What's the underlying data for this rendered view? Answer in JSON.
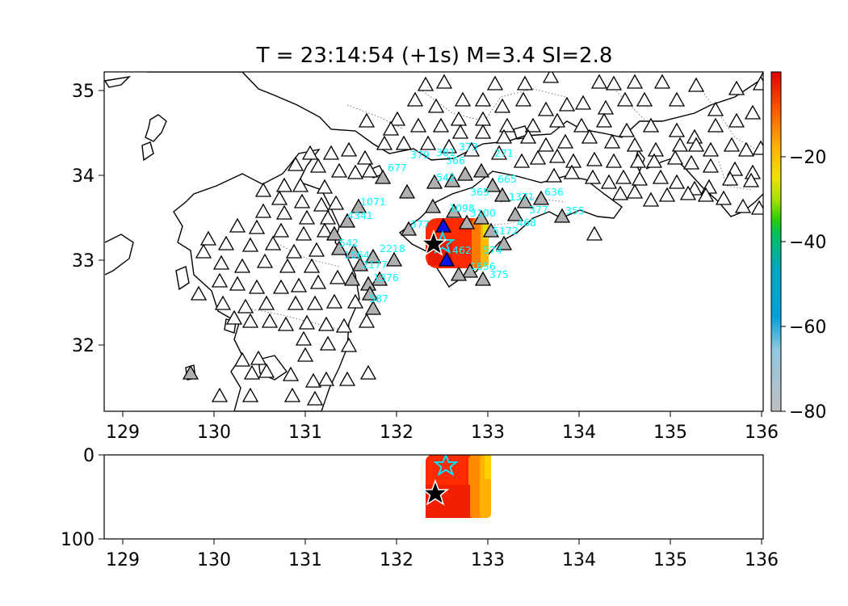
{
  "title": "T = 23:14:54 (+1s) M=3.4 SI=2.8",
  "map": {
    "lon_range": [
      128.8,
      136.0
    ],
    "lat_range": [
      31.2,
      35.2
    ],
    "x_ticks": [
      "129",
      "130",
      "131",
      "132",
      "133",
      "134",
      "135",
      "136"
    ],
    "y_ticks": [
      "35",
      "34",
      "33",
      "32"
    ]
  },
  "depth": {
    "range": [
      0,
      100
    ],
    "y_ticks": [
      "0",
      "100"
    ],
    "x_ticks": [
      "129",
      "130",
      "131",
      "132",
      "133",
      "134",
      "135",
      "136"
    ]
  },
  "colorbar": {
    "ticks": [
      "−20",
      "−40",
      "−60",
      "−80"
    ],
    "range": [
      -80,
      -3
    ],
    "colors": [
      "#c0c0c0",
      "#5fb4e0",
      "#00a0d8",
      "#00c060",
      "#30d000",
      "#e8e000",
      "#ffb000",
      "#ff7000",
      "#ff3000",
      "#e00000"
    ]
  },
  "markers": {
    "epicenter_estimate": "black-star-icon",
    "epicenter_reference": "cyan-star-icon",
    "triggered_station": "gray-triangle-icon",
    "station": "white-triangle-icon",
    "nearest_station": "blue-triangle-icon"
  },
  "station_labels": [
    "1071",
    "4341",
    "542",
    "377",
    "462",
    "574",
    "665",
    "636",
    "355",
    "377",
    "1656",
    "375",
    "587",
    "379",
    "381",
    "373",
    "366",
    "677",
    "542",
    "468",
    "1064",
    "2177",
    "2218",
    "1376",
    "5172",
    "3100",
    "1098",
    "1371",
    "271",
    "365"
  ]
}
